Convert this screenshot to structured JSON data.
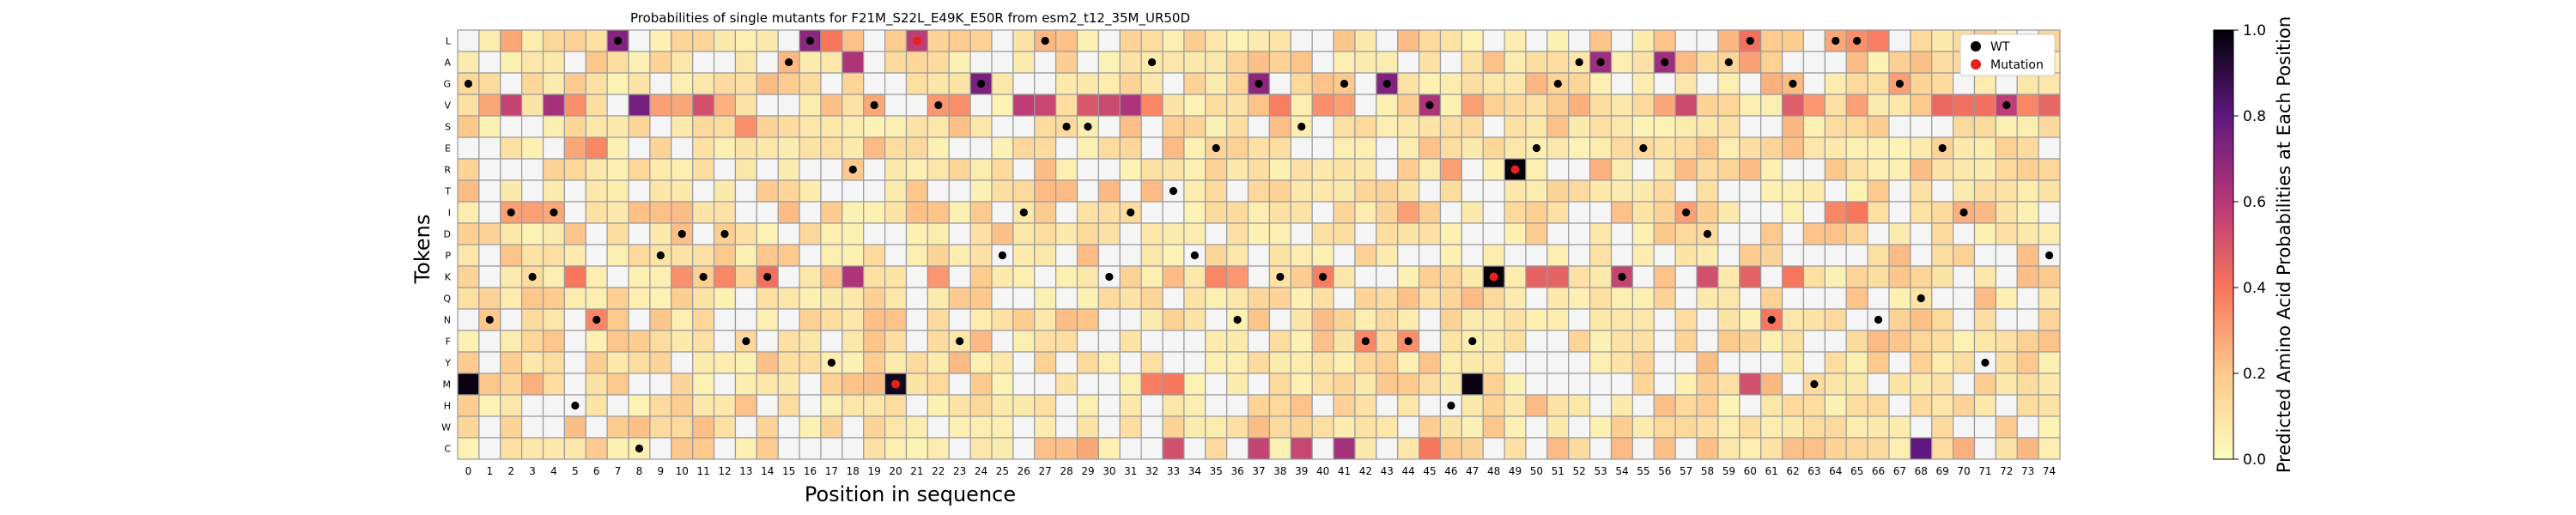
{
  "chart_data": {
    "type": "heatmap",
    "title": "Probabilities of single mutants for F21M_S22L_E49K_E50R from esm2_t12_35M_UR50D",
    "xlabel": "Position in sequence",
    "ylabel": "Tokens",
    "colorbar_label": "Predicted Amino Acid Probabilities at Each Position",
    "colorbar_ticks": [
      "0.0",
      "0.2",
      "0.4",
      "0.6",
      "0.8",
      "1.0"
    ],
    "colormap": "magma_r",
    "vmin": 0,
    "vmax": 1,
    "tokens": [
      "L",
      "A",
      "G",
      "V",
      "S",
      "E",
      "R",
      "T",
      "I",
      "D",
      "P",
      "K",
      "Q",
      "N",
      "F",
      "Y",
      "M",
      "H",
      "W",
      "C"
    ],
    "positions": [
      "0",
      "1",
      "2",
      "3",
      "4",
      "5",
      "6",
      "7",
      "8",
      "9",
      "10",
      "11",
      "12",
      "13",
      "14",
      "15",
      "16",
      "17",
      "18",
      "19",
      "20",
      "21",
      "22",
      "23",
      "24",
      "25",
      "26",
      "27",
      "28",
      "29",
      "30",
      "31",
      "32",
      "33",
      "34",
      "35",
      "36",
      "37",
      "38",
      "39",
      "40",
      "41",
      "42",
      "43",
      "44",
      "45",
      "46",
      "47",
      "48",
      "49",
      "50",
      "51",
      "52",
      "53",
      "54",
      "55",
      "56",
      "57",
      "58",
      "59",
      "60",
      "61",
      "62",
      "63",
      "64",
      "65",
      "66",
      "67",
      "68",
      "69",
      "70",
      "71",
      "72",
      "73",
      "74"
    ],
    "legend": [
      {
        "label": "WT",
        "color": "#000000"
      },
      {
        "label": "Mutation",
        "color": "#e8211c"
      }
    ],
    "legend_position": "top-right",
    "wt": [
      2,
      13,
      8,
      11,
      8,
      17,
      13,
      0,
      19,
      10,
      9,
      11,
      9,
      14,
      11,
      1,
      0,
      15,
      6,
      3,
      16,
      0,
      3,
      14,
      2,
      10,
      8,
      0,
      4,
      4,
      11,
      8,
      1,
      7,
      10,
      5,
      13,
      2,
      11,
      4,
      11,
      2,
      14,
      2,
      14,
      3,
      17,
      14,
      11,
      6,
      5,
      2,
      1,
      1,
      11,
      5,
      1,
      8,
      9,
      1,
      0,
      13,
      2,
      16,
      0,
      0,
      13,
      2,
      12,
      5,
      8,
      15,
      3,
      1,
      10
    ],
    "mut": [
      [
        21,
        0
      ],
      [
        20,
        16
      ],
      [
        48,
        11
      ],
      [
        49,
        6
      ]
    ],
    "hot": [
      [
        0,
        16,
        0.98
      ],
      [
        7,
        0,
        0.72
      ],
      [
        16,
        0,
        0.7
      ],
      [
        24,
        2,
        0.74
      ],
      [
        37,
        2,
        0.7
      ],
      [
        43,
        2,
        0.72
      ],
      [
        53,
        1,
        0.66
      ],
      [
        56,
        1,
        0.66
      ],
      [
        18,
        1,
        0.62
      ],
      [
        8,
        3,
        0.75
      ],
      [
        4,
        3,
        0.64
      ],
      [
        2,
        3,
        0.56
      ],
      [
        11,
        3,
        0.52
      ],
      [
        26,
        3,
        0.58
      ],
      [
        27,
        3,
        0.55
      ],
      [
        31,
        3,
        0.62
      ],
      [
        30,
        3,
        0.54
      ],
      [
        29,
        3,
        0.5
      ],
      [
        45,
        3,
        0.62
      ],
      [
        57,
        3,
        0.54
      ],
      [
        72,
        3,
        0.58
      ],
      [
        74,
        3,
        0.45
      ],
      [
        71,
        3,
        0.42
      ],
      [
        70,
        3,
        0.42
      ],
      [
        69,
        3,
        0.44
      ],
      [
        62,
        3,
        0.48
      ],
      [
        18,
        11,
        0.62
      ],
      [
        47,
        16,
        0.98
      ],
      [
        48,
        11,
        0.99
      ],
      [
        49,
        6,
        0.99
      ],
      [
        20,
        16,
        0.96
      ],
      [
        37,
        19,
        0.56
      ],
      [
        39,
        19,
        0.55
      ],
      [
        41,
        19,
        0.64
      ],
      [
        68,
        19,
        0.8
      ],
      [
        33,
        19,
        0.52
      ],
      [
        50,
        11,
        0.46
      ],
      [
        51,
        11,
        0.46
      ],
      [
        54,
        11,
        0.56
      ],
      [
        58,
        11,
        0.52
      ],
      [
        60,
        11,
        0.46
      ],
      [
        60,
        16,
        0.52
      ],
      [
        21,
        0,
        0.58
      ],
      [
        17,
        0,
        0.4
      ],
      [
        60,
        0,
        0.42
      ],
      [
        66,
        0,
        0.38
      ],
      [
        65,
        0,
        0.34
      ],
      [
        38,
        3,
        0.38
      ],
      [
        40,
        3,
        0.34
      ],
      [
        41,
        3,
        0.3
      ],
      [
        60,
        1,
        0.3
      ],
      [
        6,
        5,
        0.36
      ],
      [
        5,
        5,
        0.28
      ],
      [
        13,
        4,
        0.34
      ],
      [
        6,
        13,
        0.36
      ],
      [
        5,
        11,
        0.4
      ],
      [
        14,
        11,
        0.42
      ],
      [
        12,
        11,
        0.36
      ],
      [
        10,
        11,
        0.34
      ],
      [
        40,
        11,
        0.38
      ],
      [
        35,
        11,
        0.36
      ],
      [
        36,
        11,
        0.32
      ],
      [
        61,
        13,
        0.4
      ],
      [
        42,
        14,
        0.36
      ],
      [
        44,
        14,
        0.34
      ],
      [
        32,
        16,
        0.38
      ],
      [
        33,
        16,
        0.4
      ],
      [
        3,
        16,
        0.26
      ],
      [
        64,
        8,
        0.36
      ],
      [
        65,
        8,
        0.4
      ],
      [
        62,
        11,
        0.4
      ],
      [
        22,
        11,
        0.32
      ],
      [
        23,
        3,
        0.34
      ],
      [
        5,
        3,
        0.34
      ],
      [
        9,
        3,
        0.3
      ],
      [
        44,
        8,
        0.3
      ],
      [
        57,
        8,
        0.3
      ],
      [
        1,
        3,
        0.28
      ],
      [
        32,
        3,
        0.36
      ],
      [
        67,
        2,
        0.3
      ],
      [
        61,
        2,
        0.26
      ],
      [
        50,
        2,
        0.24
      ],
      [
        21,
        8,
        0.22
      ],
      [
        45,
        19,
        0.4
      ],
      [
        63,
        3,
        0.32
      ],
      [
        73,
        3,
        0.36
      ],
      [
        2,
        8,
        0.3
      ],
      [
        3,
        8,
        0.3
      ],
      [
        4,
        8,
        0.28
      ],
      [
        8,
        8,
        0.22
      ],
      [
        9,
        8,
        0.22
      ],
      [
        27,
        0,
        0.24
      ],
      [
        2,
        0,
        0.28
      ],
      [
        28,
        0,
        0.22
      ],
      [
        59,
        0,
        0.24
      ],
      [
        64,
        0,
        0.28
      ],
      [
        46,
        6,
        0.3
      ],
      [
        53,
        6,
        0.26
      ],
      [
        70,
        8,
        0.26
      ],
      [
        61,
        16,
        0.24
      ],
      [
        29,
        19,
        0.28
      ],
      [
        65,
        3,
        0.3
      ],
      [
        10,
        3,
        0.28
      ],
      [
        12,
        3,
        0.26
      ],
      [
        56,
        3,
        0.28
      ],
      [
        47,
        3,
        0.3
      ],
      [
        52,
        3,
        0.26
      ],
      [
        70,
        19,
        0.26
      ],
      [
        73,
        19,
        0.24
      ],
      [
        58,
        19,
        0.22
      ],
      [
        11,
        19,
        0.2
      ],
      [
        62,
        4,
        0.24
      ],
      [
        19,
        3,
        0.28
      ],
      [
        22,
        3,
        0.32
      ]
    ]
  }
}
